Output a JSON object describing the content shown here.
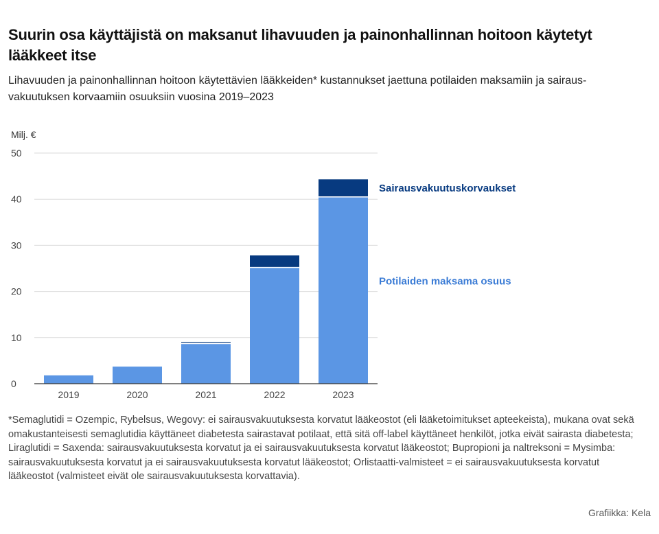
{
  "title": "Suurin osa käyttäjistä on maksanut lihavuuden ja painonhallinnan hoitoon käytetyt lääkkeet itse",
  "subtitle": "Lihavuuden ja painonhallinnan hoitoon käytettävien lääkkeiden* kustannukset jaettuna potilaiden maksamiin ja sairaus-vakuutuksen korvaamiin osuuksiin vuosina 2019–2023",
  "unit_label": "Milj. €",
  "footnote": "*Semaglutidi = Ozempic, Rybelsus, Wegovy: ei sairausvakuutuksesta korvatut lääkeostot (eli lääketoimitukset apteekeista), mukana ovat sekä omakustanteisesti semaglutidia käyttäneet diabetesta sairastavat potilaat, että sitä off-label käyttäneet henkilöt, jotka eivät sairasta diabetesta; Liraglutidi = Saxenda: sairausvakuutuksesta korvatut ja ei sairausvakuutuksesta korvatut lääkeostot; Bupropioni ja naltreksoni = Mysimba: sairausvakuutuksesta korvatut ja ei sairausvakuutuksesta korvatut lääkeostot; Orlistaatti-valmisteet = ei sairausvakuutuksesta korvatut lääkeostot (valmisteet eivät ole sairausvakuutuksesta korvattavia).",
  "source": "Grafiikka: Kela",
  "colors": {
    "patient": "#5b96e4",
    "insurance": "#073a80",
    "grid": "#d9d9d9",
    "axis": "#333333"
  },
  "chart_data": {
    "type": "bar",
    "stacked": true,
    "categories": [
      "2019",
      "2020",
      "2021",
      "2022",
      "2023"
    ],
    "series": [
      {
        "name": "Potilaiden maksama osuus",
        "values": [
          1.8,
          3.7,
          8.7,
          25.2,
          40.5
        ]
      },
      {
        "name": "Sairausvakuutuskorvaukset",
        "values": [
          0,
          0,
          0.3,
          2.6,
          3.8
        ]
      }
    ],
    "ylabel": "Milj. €",
    "ylim": [
      0,
      50
    ],
    "yticks": [
      0,
      10,
      20,
      30,
      40,
      50
    ],
    "grid": true,
    "legend": "right, next to last bar"
  }
}
